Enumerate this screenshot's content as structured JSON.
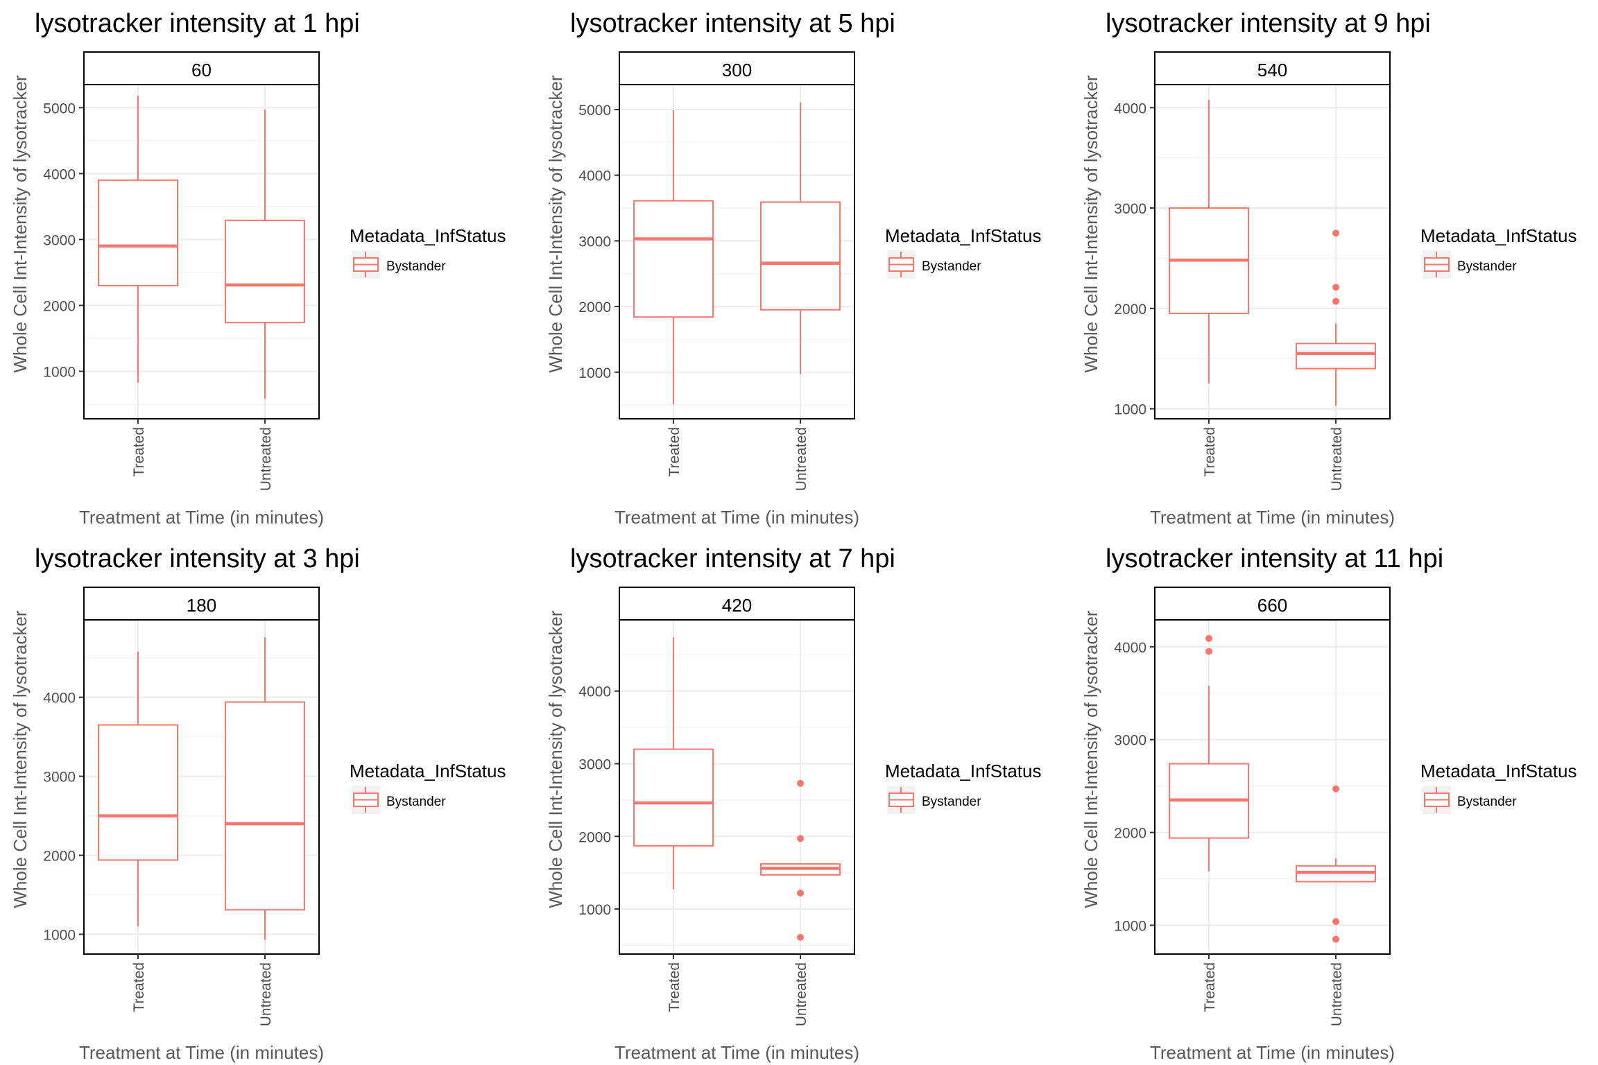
{
  "chart_data": [
    {
      "type": "boxplot",
      "title": "lysotracker intensity at 1 hpi",
      "facet_label": "60",
      "xlabel": "Treatment at Time (in minutes)",
      "ylabel": "Whole Cell Int-Intensity of lysotracker",
      "categories": [
        "Treated",
        "Untreated"
      ],
      "ylim": [
        280,
        5350
      ],
      "yticks": [
        1000,
        2000,
        3000,
        4000,
        5000
      ],
      "boxes": [
        {
          "category": "Treated",
          "whisker_low": 830,
          "q1": 2300,
          "median": 2900,
          "q3": 3900,
          "whisker_high": 5180,
          "outliers": []
        },
        {
          "category": "Untreated",
          "whisker_low": 580,
          "q1": 1740,
          "median": 2310,
          "q3": 3290,
          "whisker_high": 4970,
          "outliers": []
        }
      ],
      "legend": {
        "title": "Metadata_InfStatus",
        "entries": [
          "Bystander"
        ]
      }
    },
    {
      "type": "boxplot",
      "title": "lysotracker intensity at 5 hpi",
      "facet_label": "300",
      "xlabel": "Treatment at Time (in minutes)",
      "ylabel": "Whole Cell Int-Intensity of lysotracker",
      "categories": [
        "Treated",
        "Untreated"
      ],
      "ylim": [
        290,
        5380
      ],
      "yticks": [
        1000,
        2000,
        3000,
        4000,
        5000
      ],
      "boxes": [
        {
          "category": "Treated",
          "whisker_low": 510,
          "q1": 1840,
          "median": 3030,
          "q3": 3610,
          "whisker_high": 4990,
          "outliers": []
        },
        {
          "category": "Untreated",
          "whisker_low": 970,
          "q1": 1950,
          "median": 2660,
          "q3": 3590,
          "whisker_high": 5110,
          "outliers": []
        }
      ],
      "legend": {
        "title": "Metadata_InfStatus",
        "entries": [
          "Bystander"
        ]
      }
    },
    {
      "type": "boxplot",
      "title": "lysotracker intensity at 9 hpi",
      "facet_label": "540",
      "xlabel": "Treatment at Time (in minutes)",
      "ylabel": "Whole Cell Int-Intensity of lysotracker",
      "categories": [
        "Treated",
        "Untreated"
      ],
      "ylim": [
        900,
        4230
      ],
      "yticks": [
        1000,
        2000,
        3000,
        4000
      ],
      "boxes": [
        {
          "category": "Treated",
          "whisker_low": 1250,
          "q1": 1950,
          "median": 2480,
          "q3": 3000,
          "whisker_high": 4080,
          "outliers": []
        },
        {
          "category": "Untreated",
          "whisker_low": 1030,
          "q1": 1400,
          "median": 1550,
          "q3": 1650,
          "whisker_high": 1850,
          "outliers": [
            2070,
            2210,
            2750
          ]
        }
      ],
      "legend": {
        "title": "Metadata_InfStatus",
        "entries": [
          "Bystander"
        ]
      }
    },
    {
      "type": "boxplot",
      "title": "lysotracker intensity at 3 hpi",
      "facet_label": "180",
      "xlabel": "Treatment at Time (in minutes)",
      "ylabel": "Whole Cell Int-Intensity of lysotracker",
      "categories": [
        "Treated",
        "Untreated"
      ],
      "ylim": [
        750,
        4980
      ],
      "yticks": [
        1000,
        2000,
        3000,
        4000
      ],
      "boxes": [
        {
          "category": "Treated",
          "whisker_low": 1100,
          "q1": 1940,
          "median": 2500,
          "q3": 3650,
          "whisker_high": 4580,
          "outliers": []
        },
        {
          "category": "Untreated",
          "whisker_low": 930,
          "q1": 1310,
          "median": 2400,
          "q3": 3940,
          "whisker_high": 4760,
          "outliers": []
        }
      ],
      "legend": {
        "title": "Metadata_InfStatus",
        "entries": [
          "Bystander"
        ]
      }
    },
    {
      "type": "boxplot",
      "title": "lysotracker intensity at 7 hpi",
      "facet_label": "420",
      "xlabel": "Treatment at Time (in minutes)",
      "ylabel": "Whole Cell Int-Intensity of lysotracker",
      "categories": [
        "Treated",
        "Untreated"
      ],
      "ylim": [
        380,
        4980
      ],
      "yticks": [
        1000,
        2000,
        3000,
        4000
      ],
      "boxes": [
        {
          "category": "Treated",
          "whisker_low": 1270,
          "q1": 1870,
          "median": 2460,
          "q3": 3200,
          "whisker_high": 4740,
          "outliers": []
        },
        {
          "category": "Untreated",
          "whisker_low": 1470,
          "q1": 1470,
          "median": 1560,
          "q3": 1620,
          "whisker_high": 1620,
          "outliers": [
            610,
            1220,
            1970,
            2730
          ]
        }
      ],
      "legend": {
        "title": "Metadata_InfStatus",
        "entries": [
          "Bystander"
        ]
      }
    },
    {
      "type": "boxplot",
      "title": "lysotracker intensity at 11 hpi",
      "facet_label": "660",
      "xlabel": "Treatment at Time (in minutes)",
      "ylabel": "Whole Cell Int-Intensity of lysotracker",
      "categories": [
        "Treated",
        "Untreated"
      ],
      "ylim": [
        690,
        4290
      ],
      "yticks": [
        1000,
        2000,
        3000,
        4000
      ],
      "boxes": [
        {
          "category": "Treated",
          "whisker_low": 1580,
          "q1": 1940,
          "median": 2350,
          "q3": 2740,
          "whisker_high": 3580,
          "outliers": [
            3950,
            4090
          ]
        },
        {
          "category": "Untreated",
          "whisker_low": 1470,
          "q1": 1470,
          "median": 1570,
          "q3": 1640,
          "whisker_high": 1720,
          "outliers": [
            850,
            1040,
            2470
          ]
        }
      ],
      "legend": {
        "title": "Metadata_InfStatus",
        "entries": [
          "Bystander"
        ]
      }
    }
  ],
  "colors": {
    "series": "#f8766d",
    "grid": "#ebebeb",
    "panel_border": "#000000",
    "axis_text": "#4d4d4d",
    "axis_title": "#595959",
    "legend_key_bg": "#f2f2f2"
  }
}
